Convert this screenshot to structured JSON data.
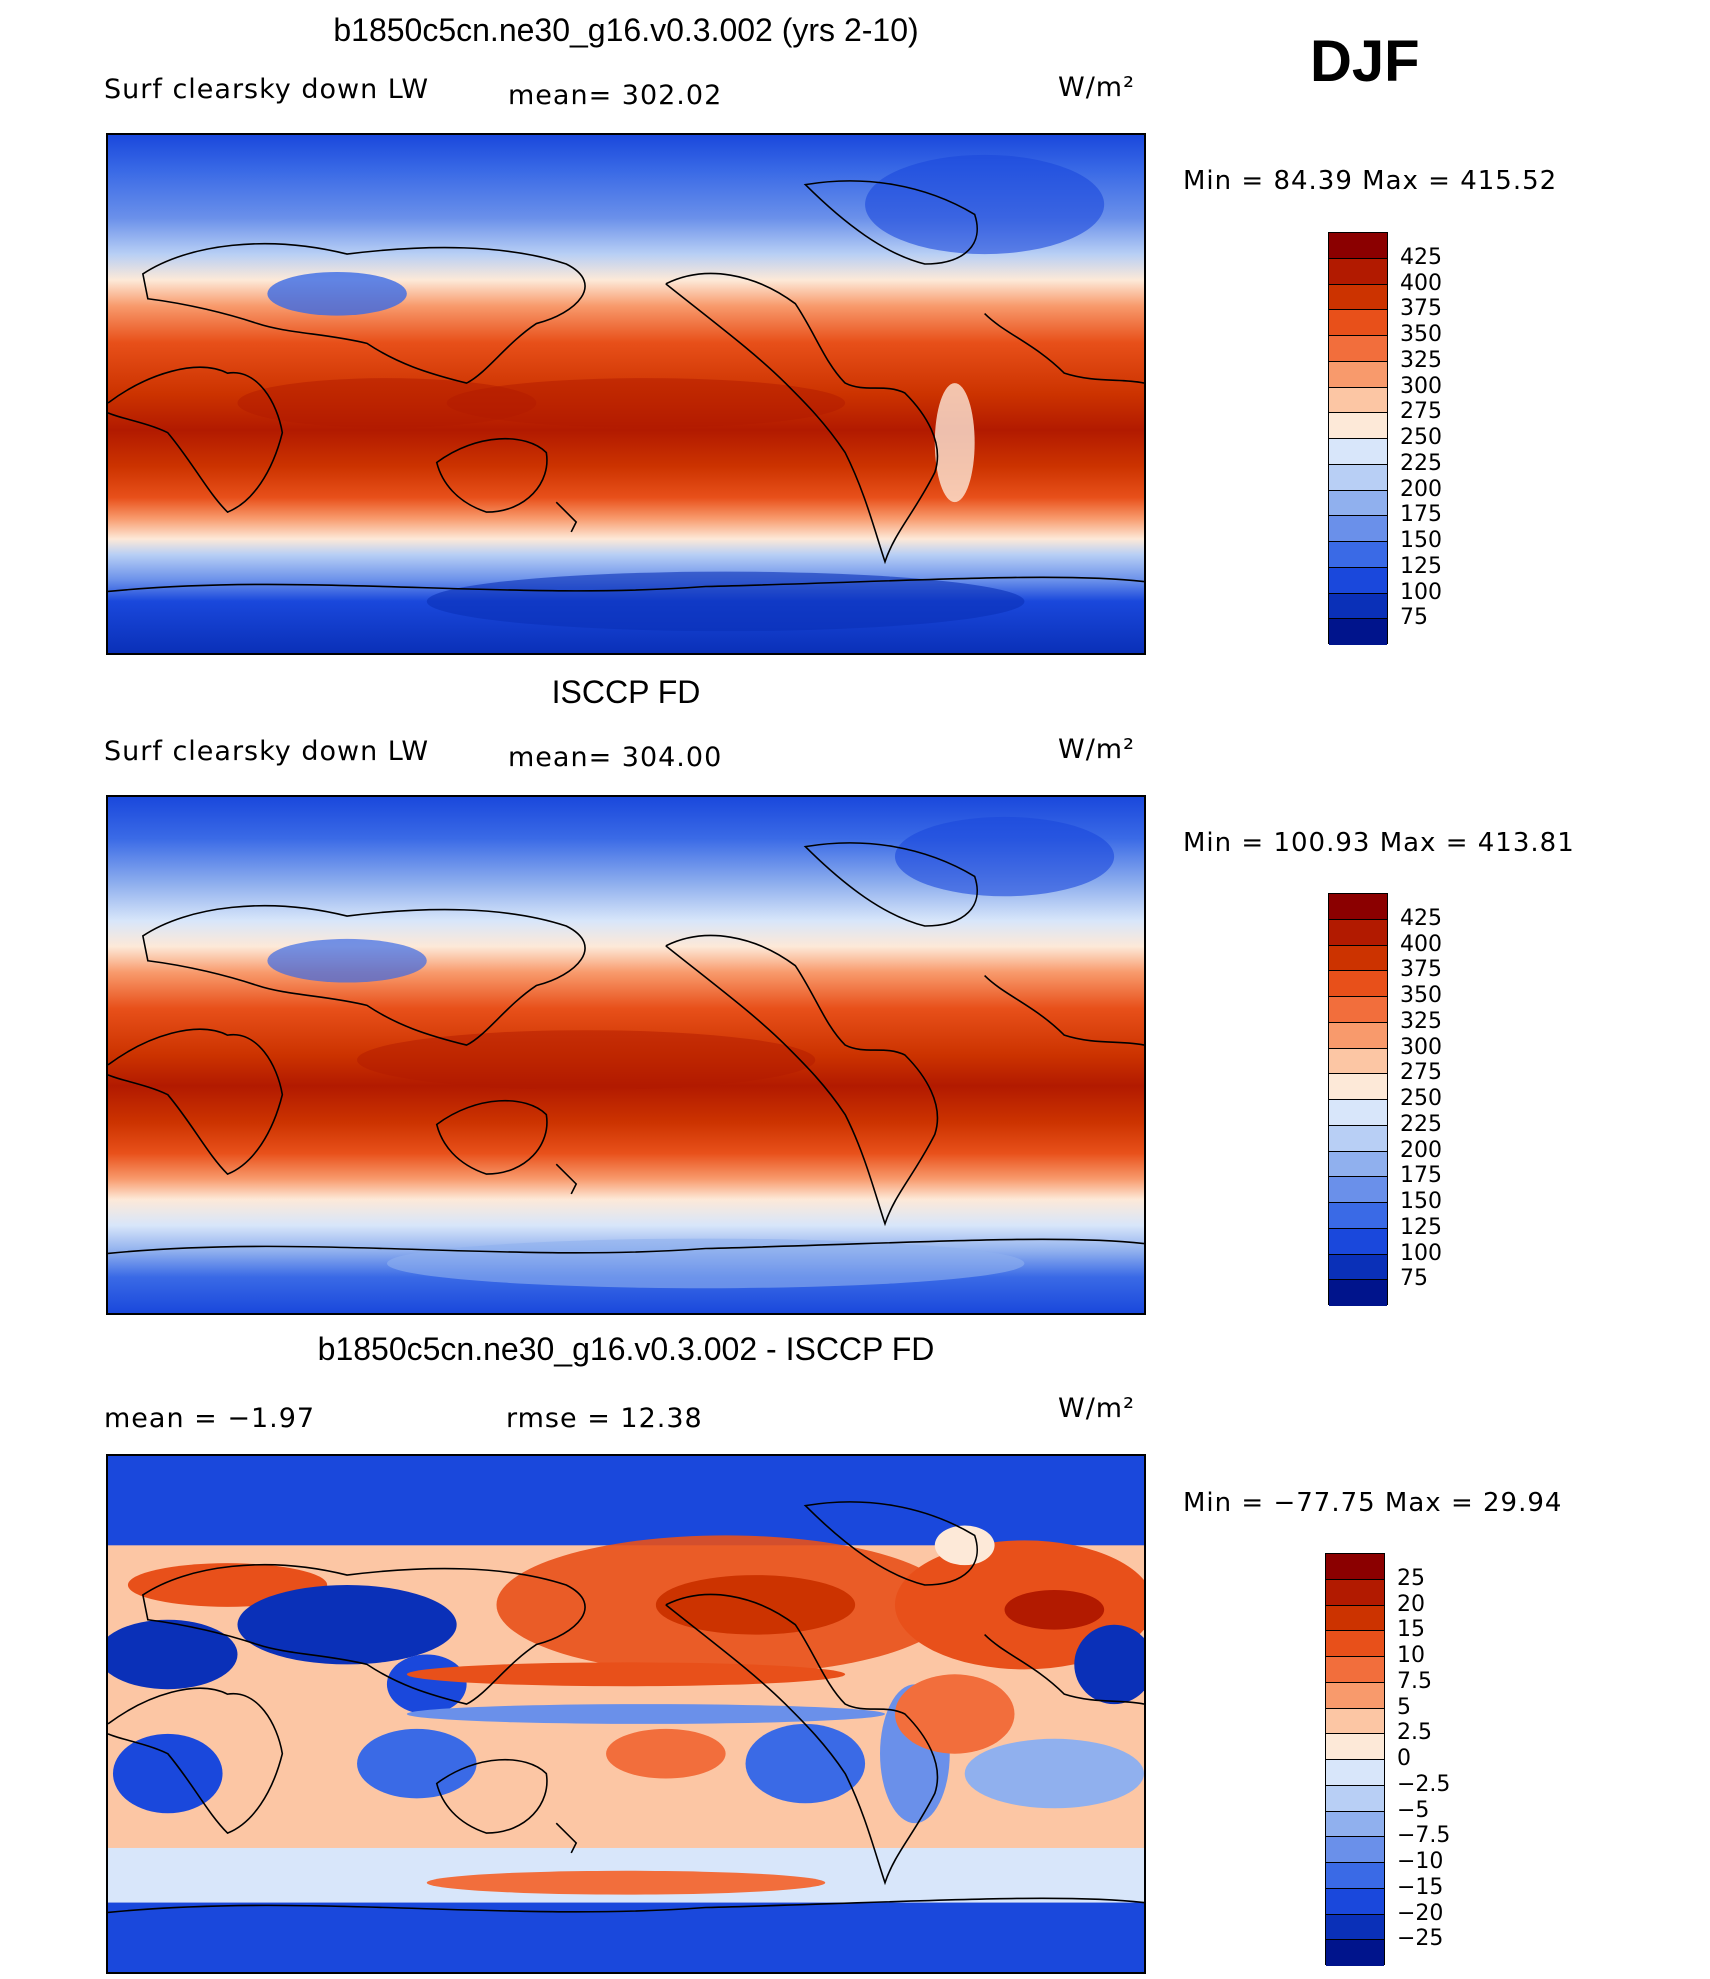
{
  "season": "DJF",
  "panels": [
    {
      "title": "b1850c5cn.ne30_g16.v0.3.002 (yrs 2-10)",
      "left_label": "Surf clearsky down LW",
      "mid_label": "mean= 302.02",
      "units": "W/m²",
      "min_max": "Min =   84.39 Max = 415.52",
      "colorbar": {
        "colors": [
          "#8b0000",
          "#b21a00",
          "#cc3300",
          "#e8501a",
          "#f26e3c",
          "#f89a6c",
          "#fcc6a4",
          "#fde9d8",
          "#d8e6fa",
          "#b8cff5",
          "#90b0ee",
          "#6a90ea",
          "#3a6ae6",
          "#1a48dc",
          "#0a30b8",
          "#00148c"
        ],
        "labels": [
          "425",
          "400",
          "375",
          "350",
          "325",
          "300",
          "275",
          "250",
          "225",
          "200",
          "175",
          "150",
          "125",
          "100",
          "75"
        ]
      }
    },
    {
      "title": "ISCCP FD",
      "left_label": "Surf clearsky down LW",
      "mid_label": "mean= 304.00",
      "units": "W/m²",
      "min_max": "Min = 100.93 Max = 413.81",
      "colorbar": {
        "colors": [
          "#8b0000",
          "#b21a00",
          "#cc3300",
          "#e8501a",
          "#f26e3c",
          "#f89a6c",
          "#fcc6a4",
          "#fde9d8",
          "#d8e6fa",
          "#b8cff5",
          "#90b0ee",
          "#6a90ea",
          "#3a6ae6",
          "#1a48dc",
          "#0a30b8",
          "#00148c"
        ],
        "labels": [
          "425",
          "400",
          "375",
          "350",
          "325",
          "300",
          "275",
          "250",
          "225",
          "200",
          "175",
          "150",
          "125",
          "100",
          "75"
        ]
      }
    },
    {
      "title": "b1850c5cn.ne30_g16.v0.3.002 - ISCCP FD",
      "left_label": "mean =   −1.97",
      "mid_label": "rmse =   12.38",
      "units": "W/m²",
      "min_max": "Min = −77.75 Max =   29.94",
      "colorbar": {
        "colors": [
          "#8b0000",
          "#b21a00",
          "#cc3300",
          "#e8501a",
          "#f26e3c",
          "#f89a6c",
          "#fcc6a4",
          "#fde9d8",
          "#d8e6fa",
          "#b8cff5",
          "#90b0ee",
          "#6a90ea",
          "#3a6ae6",
          "#1a48dc",
          "#0a30b8",
          "#00148c"
        ],
        "labels": [
          "25",
          "20",
          "15",
          "10",
          "7.5",
          "5",
          "2.5",
          "0",
          "−2.5",
          "−5",
          "−7.5",
          "−10",
          "−15",
          "−20",
          "−25"
        ]
      }
    }
  ]
}
